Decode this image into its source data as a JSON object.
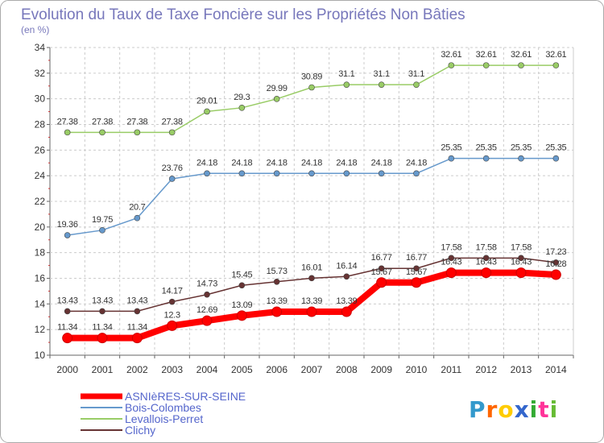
{
  "chart_data": {
    "type": "line",
    "title": "Evolution du Taux de Taxe Foncière sur les Propriétés Non Bâties",
    "subtitle": "(en %)",
    "x": [
      "2000",
      "2001",
      "2002",
      "2003",
      "2004",
      "2005",
      "2006",
      "2007",
      "2008",
      "2009",
      "2010",
      "2011",
      "2012",
      "2013",
      "2014"
    ],
    "ylim": [
      10,
      34
    ],
    "yticks": [
      10,
      12,
      14,
      16,
      18,
      20,
      22,
      24,
      26,
      28,
      30,
      32,
      34
    ],
    "grid": true,
    "legend_position": "bottom-left",
    "series": [
      {
        "name": "Levallois-Perret",
        "color": "#99cc66",
        "values": [
          27.38,
          27.38,
          27.38,
          27.38,
          29.01,
          29.3,
          29.99,
          30.89,
          31.1,
          31.1,
          31.1,
          32.61,
          32.61,
          32.61,
          32.61
        ],
        "labels": [
          "27.38",
          "27.38",
          "27.38",
          "27.38",
          "29.01",
          "29.3",
          "29.99",
          "30.89",
          "31.1",
          "31.1",
          "31.1",
          "32.61",
          "32.61",
          "32.61",
          "32.61"
        ]
      },
      {
        "name": "Bois-Colombes",
        "color": "#6699cc",
        "values": [
          19.36,
          19.75,
          20.7,
          23.76,
          24.18,
          24.18,
          24.18,
          24.18,
          24.18,
          24.18,
          24.18,
          25.35,
          25.35,
          25.35,
          25.35
        ],
        "labels": [
          "19.36",
          "19.75",
          "20.7",
          "23.76",
          "24.18",
          "24.18",
          "24.18",
          "24.18",
          "24.18",
          "24.18",
          "24.18",
          "25.35",
          "25.35",
          "25.35",
          "25.35"
        ]
      },
      {
        "name": "Clichy",
        "color": "#663333",
        "values": [
          13.43,
          13.43,
          13.43,
          14.17,
          14.73,
          15.45,
          15.73,
          16.01,
          16.14,
          16.77,
          16.77,
          17.58,
          17.58,
          17.58,
          17.23
        ],
        "labels": [
          "13.43",
          "13.43",
          "13.43",
          "14.17",
          "14.73",
          "15.45",
          "15.73",
          "16.01",
          "16.14",
          "16.77",
          "16.77",
          "17.58",
          "17.58",
          "17.58",
          "17.23"
        ]
      },
      {
        "name": "ASNIèRES-SUR-SEINE",
        "color": "#ff0000",
        "values": [
          11.34,
          11.34,
          11.34,
          12.3,
          12.69,
          13.09,
          13.39,
          13.39,
          13.39,
          15.67,
          15.67,
          16.43,
          16.43,
          16.43,
          16.28
        ],
        "labels": [
          "11.34",
          "11.34",
          "11.34",
          "12.3",
          "12.69",
          "13.09",
          "13.39",
          "13.39",
          "13.39",
          "15.67",
          "15.67",
          "16.43",
          "16.43",
          "16.43",
          "16.28"
        ]
      }
    ],
    "legend": [
      {
        "name": "ASNIèRES-SUR-SEINE",
        "color": "#ff0000"
      },
      {
        "name": "Bois-Colombes",
        "color": "#6699cc"
      },
      {
        "name": "Levallois-Perret",
        "color": "#99cc66"
      },
      {
        "name": "Clichy",
        "color": "#663333"
      }
    ]
  },
  "branding": {
    "logo_text": "Proxiti",
    "logo_letters": [
      "P",
      "r",
      "o",
      "x",
      "i",
      "t",
      "i"
    ],
    "logo_colors": [
      "#3399cc",
      "#ff6600",
      "#ffcc00",
      "#3366cc",
      "#33aa33",
      "#ff3399",
      "#66bb33"
    ]
  }
}
